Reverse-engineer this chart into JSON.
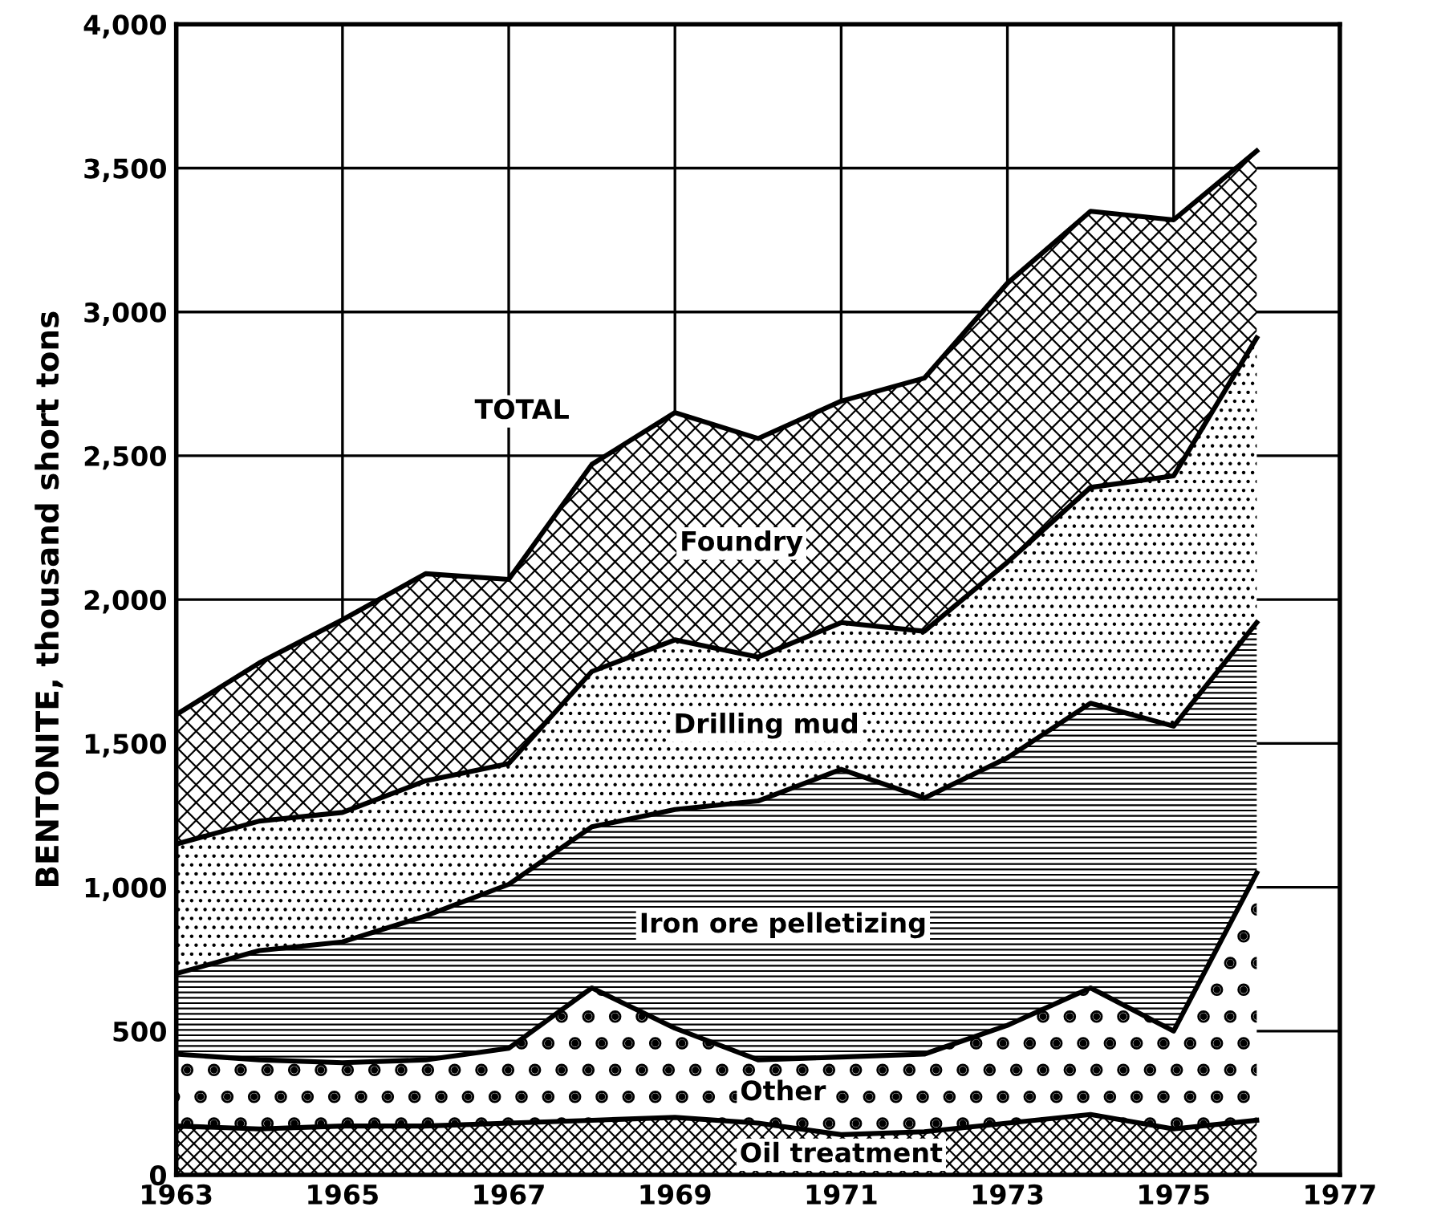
{
  "chart_data": {
    "type": "area",
    "stacked": true,
    "ylabel": "BENTONITE, thousand short tons",
    "x": [
      1963,
      1964,
      1965,
      1966,
      1967,
      1968,
      1969,
      1970,
      1971,
      1972,
      1973,
      1974,
      1975,
      1976
    ],
    "series": [
      {
        "name": "Oil treatment",
        "color": "#000000",
        "values": [
          170,
          160,
          170,
          170,
          180,
          190,
          200,
          180,
          140,
          150,
          180,
          210,
          160,
          190
        ]
      },
      {
        "name": "Other",
        "color": "#000000",
        "values": [
          250,
          240,
          220,
          230,
          260,
          460,
          310,
          220,
          270,
          270,
          340,
          440,
          340,
          860
        ]
      },
      {
        "name": "Iron ore pelletizing",
        "color": "#000000",
        "values": [
          280,
          380,
          420,
          500,
          570,
          560,
          760,
          900,
          1000,
          890,
          930,
          990,
          1060,
          870
        ]
      },
      {
        "name": "Drilling mud",
        "color": "#000000",
        "values": [
          450,
          450,
          450,
          470,
          420,
          540,
          590,
          500,
          510,
          580,
          680,
          750,
          870,
          990
        ]
      },
      {
        "name": "Foundry",
        "color": "#000000",
        "values": [
          450,
          550,
          670,
          720,
          640,
          720,
          790,
          760,
          770,
          880,
          970,
          960,
          890,
          650
        ]
      }
    ],
    "annotations": [
      {
        "text": "TOTAL",
        "x": 1968,
        "y": 2470
      }
    ],
    "xlim": [
      1963,
      1977
    ],
    "xticks": [
      1963,
      1965,
      1967,
      1969,
      1971,
      1973,
      1975,
      1977
    ],
    "ylim": [
      0,
      4000
    ],
    "yticks": [
      0,
      500,
      {
        "value": 1000,
        "label": "1,000"
      },
      {
        "value": 1500,
        "label": "1,500"
      },
      {
        "value": 2000,
        "label": "2,000"
      },
      {
        "value": 2500,
        "label": "2,500"
      },
      {
        "value": 3000,
        "label": "3,000"
      },
      {
        "value": 3500,
        "label": "3,500"
      },
      {
        "value": 4000,
        "label": "4,000"
      }
    ],
    "grid": true,
    "legend": false
  }
}
